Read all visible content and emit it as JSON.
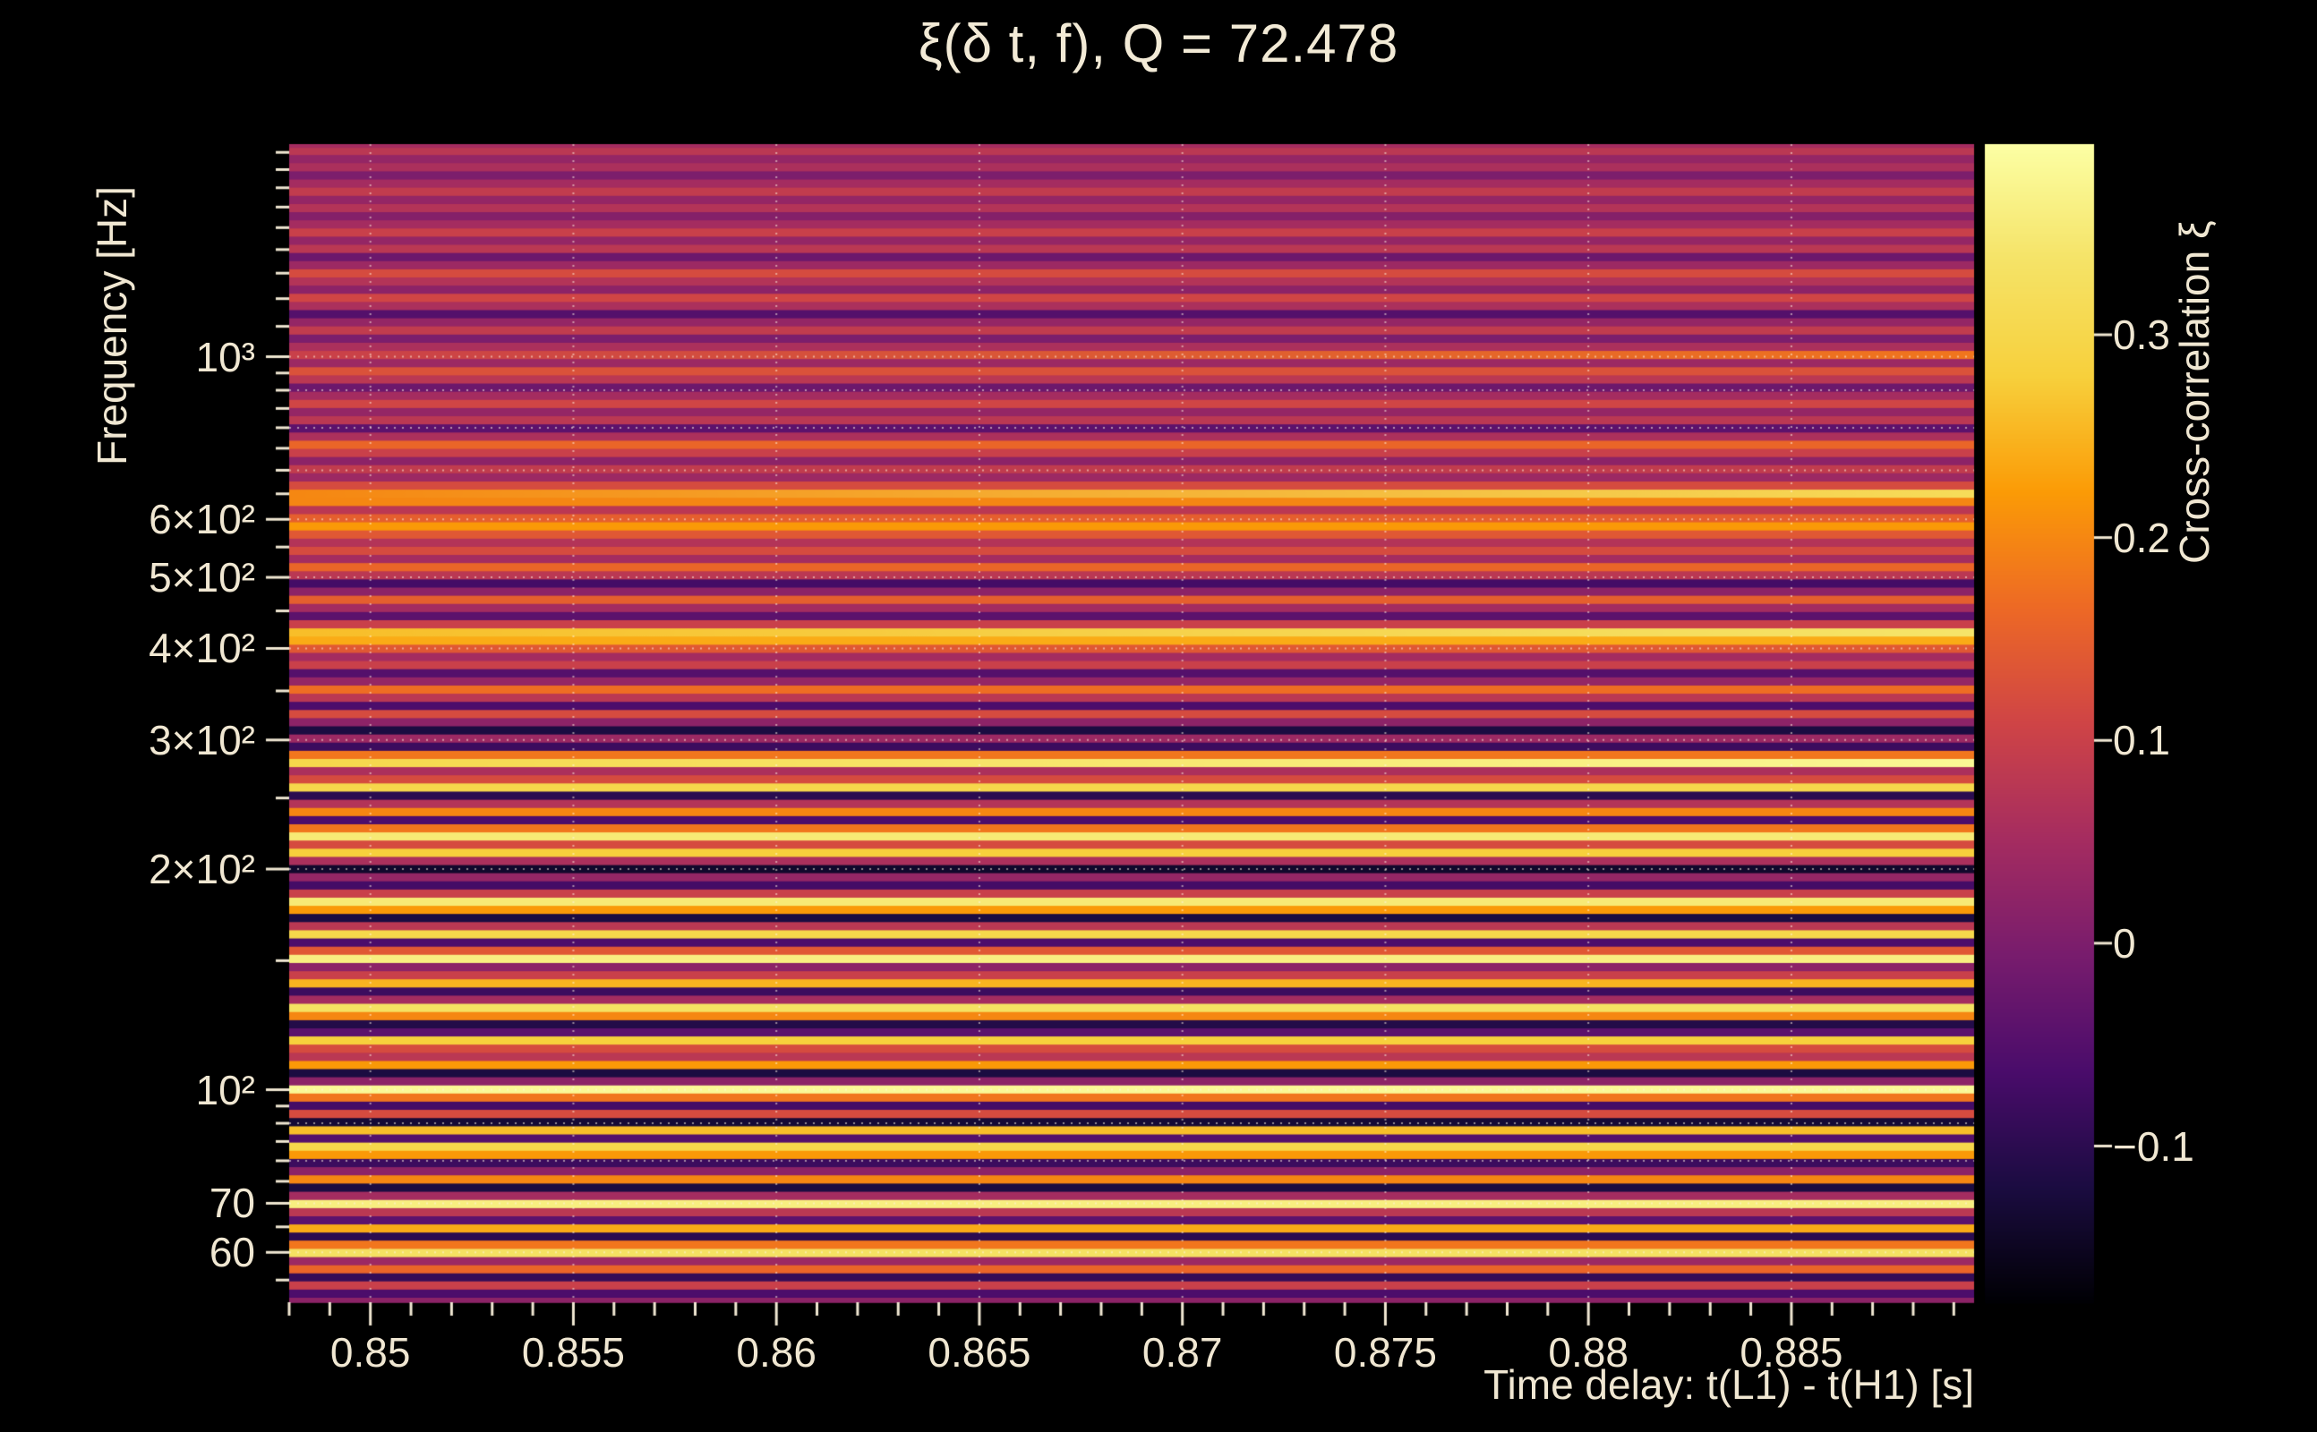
{
  "page": {
    "background": "#000000"
  },
  "colors": {
    "text": "#f0e7d2",
    "tick": "#f0e7d2",
    "grid": "rgba(255,244,224,0.55)"
  },
  "chart_data": {
    "type": "heatmap",
    "title": "ξ(δ t, f), Q = 72.478",
    "xlabel": "Time delay: t(L1) - t(H1) [s]",
    "ylabel": "Frequency [Hz]",
    "colorbar_label": "Cross-correlation ξ",
    "x_range": [
      0.848,
      0.8895
    ],
    "y_range_hz": [
      51.3,
      1950
    ],
    "y_scale": "log",
    "colorbar_range": [
      -0.177,
      0.394
    ],
    "x_ticks": [
      {
        "label": "0.85",
        "value": 0.85
      },
      {
        "label": "0.855",
        "value": 0.855
      },
      {
        "label": "0.86",
        "value": 0.86
      },
      {
        "label": "0.865",
        "value": 0.865
      },
      {
        "label": "0.87",
        "value": 0.87
      },
      {
        "label": "0.875",
        "value": 0.875
      },
      {
        "label": "0.88",
        "value": 0.88
      },
      {
        "label": "0.885",
        "value": 0.885
      }
    ],
    "x_minor_step": 0.001,
    "y_ticks": [
      {
        "label": "10³",
        "value": 1000
      },
      {
        "label": "6×10²",
        "value": 600
      },
      {
        "label": "5×10²",
        "value": 500
      },
      {
        "label": "4×10²",
        "value": 400
      },
      {
        "label": "3×10²",
        "value": 300
      },
      {
        "label": "2×10²",
        "value": 200
      },
      {
        "label": "10²",
        "value": 100
      },
      {
        "label": "70",
        "value": 70
      },
      {
        "label": "60",
        "value": 60
      }
    ],
    "y_minor_ticks": [
      55,
      65,
      75,
      80,
      85,
      90,
      95,
      150,
      250,
      350,
      450,
      550,
      650,
      700,
      750,
      800,
      850,
      900,
      950,
      1100,
      1200,
      1300,
      1400,
      1500,
      1600,
      1700,
      1800,
      1900
    ],
    "x_gridlines": [
      0.85,
      0.855,
      0.86,
      0.865,
      0.87,
      0.875,
      0.88,
      0.885
    ],
    "y_gridlines": [
      60,
      70,
      80,
      90,
      100,
      200,
      300,
      400,
      500,
      600,
      700,
      800,
      900,
      1000
    ],
    "colorbar_ticks": [
      {
        "label": "0.3",
        "value": 0.3
      },
      {
        "label": "0.2",
        "value": 0.2
      },
      {
        "label": "0.1",
        "value": 0.1
      },
      {
        "label": "0",
        "value": 0.0
      },
      {
        "label": "−0.1",
        "value": -0.1
      }
    ],
    "colormap": {
      "name": "inferno",
      "anchors": [
        [
          0.0,
          "#000004"
        ],
        [
          0.1,
          "#1b0c41"
        ],
        [
          0.2,
          "#4a0c6b"
        ],
        [
          0.3,
          "#781c6d"
        ],
        [
          0.4,
          "#a52c60"
        ],
        [
          0.5,
          "#cf4446"
        ],
        [
          0.6,
          "#ed6925"
        ],
        [
          0.7,
          "#fb9b06"
        ],
        [
          0.8,
          "#f7d03c"
        ],
        [
          0.9,
          "#f5e367"
        ],
        [
          1.0,
          "#fcffa4"
        ]
      ]
    },
    "bands": [
      [
        51.5,
        0.02
      ],
      [
        52.8,
        -0.06
      ],
      [
        54.2,
        0.1
      ],
      [
        55.6,
        -0.09
      ],
      [
        57.0,
        0.16
      ],
      [
        58.5,
        0.04
      ],
      [
        60.0,
        0.33
      ],
      [
        61.6,
        0.18
      ],
      [
        63.2,
        -0.1
      ],
      [
        64.8,
        0.24
      ],
      [
        66.5,
        -0.04
      ],
      [
        68.2,
        0.08
      ],
      [
        70.0,
        0.36
      ],
      [
        71.8,
        0.05
      ],
      [
        73.7,
        -0.12
      ],
      [
        75.6,
        0.2
      ],
      [
        77.6,
        0.02
      ],
      [
        79.6,
        -0.08
      ],
      [
        81.7,
        0.22
      ],
      [
        83.8,
        0.3
      ],
      [
        86.0,
        -0.05
      ],
      [
        88.2,
        0.26
      ],
      [
        90.5,
        -0.13
      ],
      [
        92.9,
        0.12
      ],
      [
        95.3,
        -0.07
      ],
      [
        97.8,
        0.18
      ],
      [
        100.3,
        0.38
      ],
      [
        102.9,
        0.02
      ],
      [
        105.6,
        -0.12
      ],
      [
        108.3,
        0.22
      ],
      [
        111.1,
        0.08
      ],
      [
        114.0,
        0.12
      ],
      [
        117.0,
        0.28
      ],
      [
        120.0,
        -0.04
      ],
      [
        123.1,
        -0.11
      ],
      [
        126.3,
        0.2
      ],
      [
        129.6,
        0.33
      ],
      [
        133.0,
        0.05
      ],
      [
        136.4,
        -0.08
      ],
      [
        140.0,
        0.25
      ],
      [
        143.6,
        0.1
      ],
      [
        147.3,
        0.02
      ],
      [
        151.2,
        0.36
      ],
      [
        155.1,
        0.14
      ],
      [
        159.1,
        -0.06
      ],
      [
        163.3,
        0.3
      ],
      [
        167.5,
        0.08
      ],
      [
        171.9,
        -0.12
      ],
      [
        176.3,
        0.22
      ],
      [
        180.9,
        0.35
      ],
      [
        185.6,
        0.1
      ],
      [
        190.4,
        -0.07
      ],
      [
        195.4,
        0.03
      ],
      [
        200.4,
        -0.14
      ],
      [
        205.6,
        0.06
      ],
      [
        211.0,
        0.28
      ],
      [
        216.4,
        0.12
      ],
      [
        222.1,
        0.35
      ],
      [
        227.8,
        0.18
      ],
      [
        233.7,
        -0.06
      ],
      [
        239.8,
        0.2
      ],
      [
        246.0,
        0.07
      ],
      [
        252.4,
        -0.1
      ],
      [
        259.0,
        0.3
      ],
      [
        265.7,
        0.12
      ],
      [
        272.6,
        0.06
      ],
      [
        279.7,
        0.3,
        0.38
      ],
      [
        286.9,
        0.18
      ],
      [
        294.4,
        -0.08
      ],
      [
        302.0,
        0.04
      ],
      [
        309.9,
        -0.12
      ],
      [
        317.9,
        0.02
      ],
      [
        326.2,
        0.12
      ],
      [
        334.6,
        -0.06
      ],
      [
        343.3,
        0.08
      ],
      [
        352.2,
        0.17
      ],
      [
        361.4,
        0.03
      ],
      [
        370.8,
        -0.05
      ],
      [
        380.4,
        0.1
      ],
      [
        390.3,
        0.05
      ],
      [
        400.4,
        0.14
      ],
      [
        410.8,
        0.24
      ],
      [
        421.5,
        0.26,
        0.34
      ],
      [
        432.4,
        0.1
      ],
      [
        443.7,
        -0.04
      ],
      [
        455.2,
        0.05
      ],
      [
        467.0,
        0.15
      ],
      [
        479.1,
        0.02
      ],
      [
        491.6,
        -0.07
      ],
      [
        504.3,
        0.08
      ],
      [
        517.4,
        0.16
      ],
      [
        530.9,
        0.05
      ],
      [
        544.6,
        0.12
      ],
      [
        558.8,
        0.07
      ],
      [
        573.3,
        0.14
      ],
      [
        588.2,
        0.22
      ],
      [
        603.4,
        0.15
      ],
      [
        619.1,
        0.08
      ],
      [
        635.2,
        0.2
      ],
      [
        651.7,
        0.2,
        0.32
      ],
      [
        668.6,
        0.12
      ],
      [
        686.0,
        0.04
      ],
      [
        703.8,
        0.09
      ],
      [
        722.0,
        0.02
      ],
      [
        740.8,
        0.1
      ],
      [
        760.0,
        0.16
      ],
      [
        779.8,
        0.06
      ],
      [
        800.0,
        -0.04
      ],
      [
        820.8,
        0.08
      ],
      [
        842.1,
        0.03
      ],
      [
        864.0,
        0.11
      ],
      [
        886.4,
        0.05
      ],
      [
        909.4,
        -0.02
      ],
      [
        933.1,
        0.08
      ],
      [
        957.3,
        0.13
      ],
      [
        982.2,
        0.04
      ],
      [
        1007.7,
        0.1,
        0.18
      ],
      [
        1033.8,
        0.06
      ],
      [
        1060.7,
        0.0
      ],
      [
        1088.2,
        0.09
      ],
      [
        1116.5,
        0.03
      ],
      [
        1145.5,
        -0.05
      ],
      [
        1175.2,
        0.06
      ],
      [
        1205.7,
        0.11
      ],
      [
        1237.0,
        0.02
      ],
      [
        1269.2,
        0.07
      ],
      [
        1302.1,
        0.12
      ],
      [
        1335.9,
        0.04
      ],
      [
        1370.6,
        -0.02
      ],
      [
        1406.2,
        0.08
      ],
      [
        1442.7,
        0.03
      ],
      [
        1480.2,
        0.1
      ],
      [
        1518.6,
        0.05
      ],
      [
        1558.1,
        0.01
      ],
      [
        1598.5,
        0.07
      ],
      [
        1640.0,
        0.03
      ],
      [
        1682.6,
        0.09
      ],
      [
        1726.3,
        0.05
      ],
      [
        1771.1,
        0.0
      ],
      [
        1817.1,
        0.06
      ],
      [
        1864.3,
        0.03
      ],
      [
        1912.7,
        0.08
      ],
      [
        1950.0,
        0.05
      ]
    ]
  }
}
